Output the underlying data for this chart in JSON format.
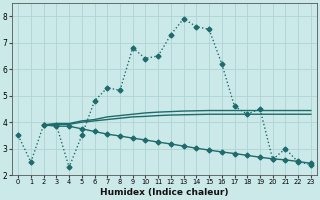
{
  "xlabel": "Humidex (Indice chaleur)",
  "xlim": [
    -0.5,
    23.5
  ],
  "ylim": [
    2.0,
    8.5
  ],
  "yticks": [
    2,
    3,
    4,
    5,
    6,
    7,
    8
  ],
  "xticks": [
    0,
    1,
    2,
    3,
    4,
    5,
    6,
    7,
    8,
    9,
    10,
    11,
    12,
    13,
    14,
    15,
    16,
    17,
    18,
    19,
    20,
    21,
    22,
    23
  ],
  "background_color": "#cce9e9",
  "grid_color": "#afd4d4",
  "line_color": "#1e6b6b",
  "lines": [
    {
      "x": [
        0,
        1,
        2,
        3,
        4,
        5,
        6,
        7,
        8,
        9,
        10,
        11,
        12,
        13,
        14,
        15,
        16,
        17,
        18,
        19,
        20,
        21,
        22,
        23
      ],
      "y": [
        3.5,
        2.5,
        3.9,
        3.9,
        2.3,
        3.5,
        4.8,
        5.3,
        5.2,
        6.8,
        6.4,
        6.5,
        7.3,
        7.9,
        7.6,
        7.5,
        6.2,
        4.6,
        4.3,
        4.5,
        2.6,
        3.0,
        2.5,
        2.4
      ],
      "style": "dotted",
      "marker": "D",
      "markersize": 2.5,
      "linewidth": 1.0
    },
    {
      "x": [
        2,
        3,
        4,
        5,
        6,
        7,
        8,
        9,
        10,
        11,
        12,
        13,
        14,
        15,
        16,
        17,
        18,
        19,
        20,
        21,
        22,
        23
      ],
      "y": [
        3.9,
        3.95,
        3.95,
        4.05,
        4.1,
        4.2,
        4.25,
        4.3,
        4.35,
        4.38,
        4.4,
        4.42,
        4.43,
        4.44,
        4.44,
        4.44,
        4.44,
        4.44,
        4.44,
        4.44,
        4.44,
        4.44
      ],
      "style": "solid",
      "marker": null,
      "markersize": 0,
      "linewidth": 1.0
    },
    {
      "x": [
        2,
        3,
        4,
        5,
        6,
        7,
        8,
        9,
        10,
        11,
        12,
        13,
        14,
        15,
        16,
        17,
        18,
        19,
        20,
        21,
        22,
        23
      ],
      "y": [
        3.9,
        3.92,
        3.92,
        4.0,
        4.05,
        4.1,
        4.15,
        4.2,
        4.22,
        4.25,
        4.27,
        4.28,
        4.29,
        4.3,
        4.3,
        4.3,
        4.3,
        4.3,
        4.3,
        4.3,
        4.3,
        4.3
      ],
      "style": "solid",
      "marker": null,
      "markersize": 0,
      "linewidth": 1.0
    },
    {
      "x": [
        2,
        3,
        4,
        5,
        6,
        7,
        8,
        9,
        10,
        11,
        12,
        13,
        14,
        15,
        16,
        17,
        18,
        19,
        20,
        21,
        22,
        23
      ],
      "y": [
        3.9,
        3.85,
        3.85,
        3.75,
        3.65,
        3.55,
        3.48,
        3.4,
        3.33,
        3.25,
        3.18,
        3.1,
        3.02,
        2.95,
        2.88,
        2.82,
        2.75,
        2.68,
        2.62,
        2.58,
        2.52,
        2.45
      ],
      "style": "solid",
      "marker": "D",
      "markersize": 2.5,
      "linewidth": 1.0
    }
  ]
}
